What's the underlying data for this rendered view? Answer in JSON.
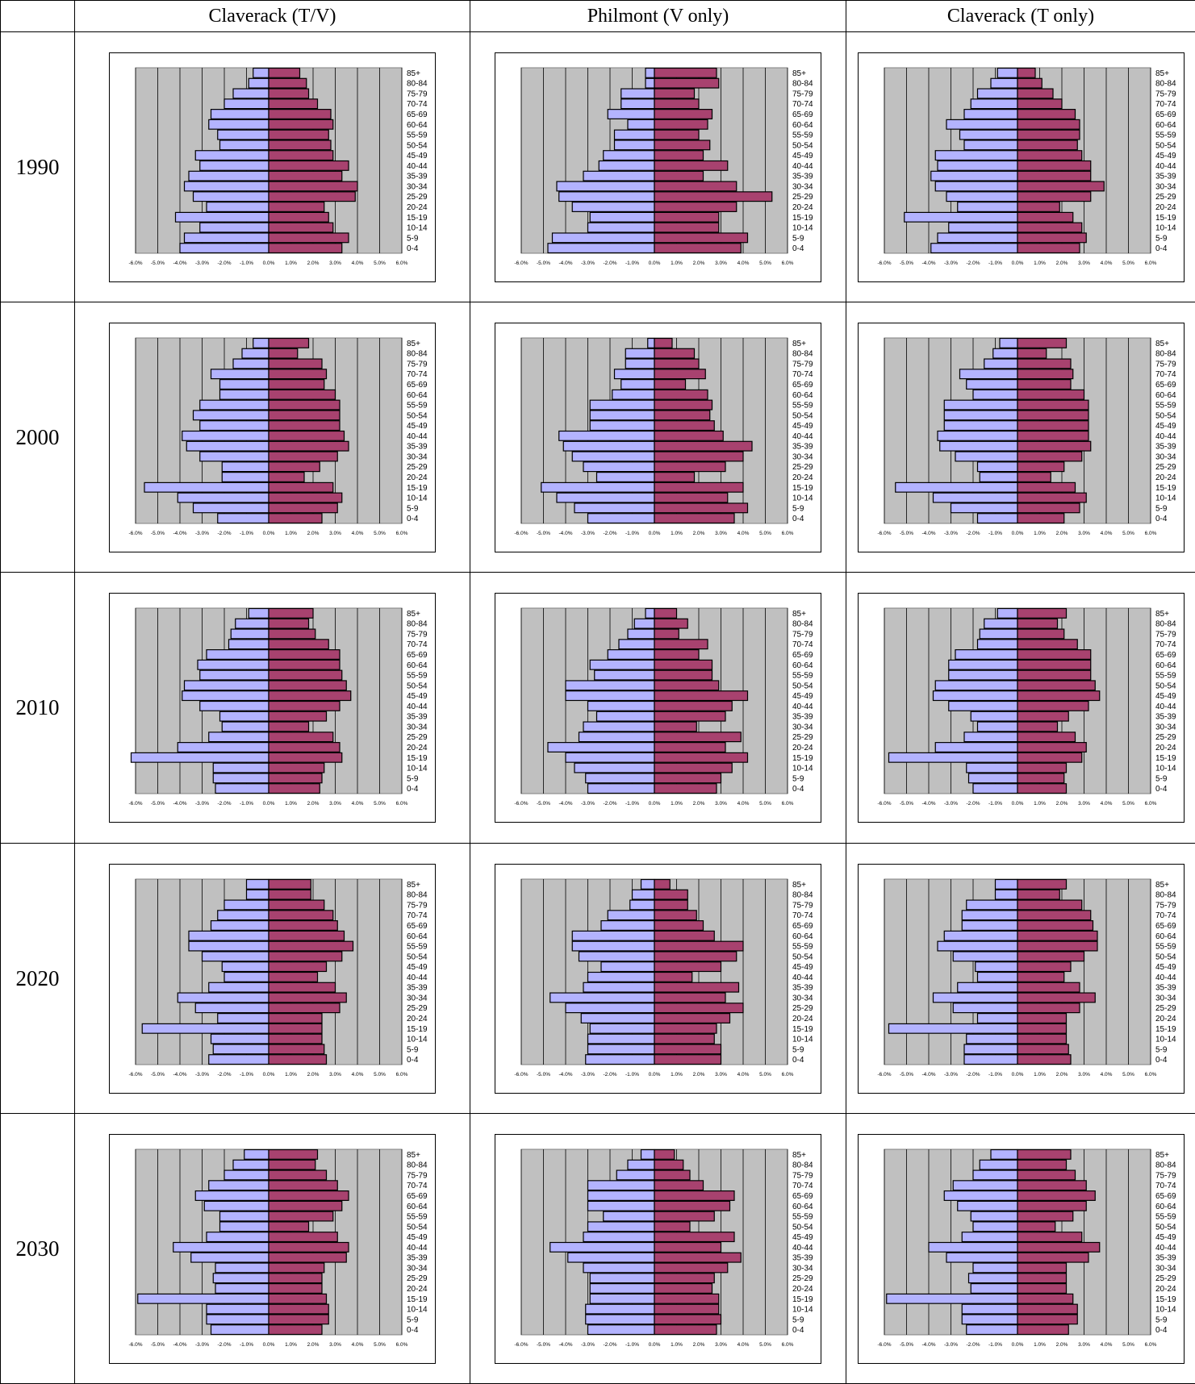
{
  "table": {
    "columns": [
      "",
      "Claverack (T/V)",
      "Philmont (V only)",
      "Claverack (T only)"
    ],
    "years": [
      "1990",
      "2000",
      "2010",
      "2020",
      "2030"
    ]
  },
  "colors": {
    "male": "#b3b3ff",
    "female": "#a8426f",
    "plot_bg": "#c0c0c0",
    "grid": "#000000"
  },
  "age_groups": [
    "85+",
    "80-84",
    "75-79",
    "70-74",
    "65-69",
    "60-64",
    "55-59",
    "50-54",
    "45-49",
    "40-44",
    "35-39",
    "30-34",
    "25-29",
    "20-24",
    "15-19",
    "10-14",
    "5-9",
    "0-4"
  ],
  "x_ticks": [
    "-6.0%",
    "-5.0%",
    "-4.0%",
    "-3.0%",
    "-2.0%",
    "-1.0%",
    "0.0%",
    "1.0%",
    "2.0%",
    "3.0%",
    "4.0%",
    "5.0%",
    "6.0%"
  ],
  "chart_data": [
    {
      "type": "bar",
      "orientation": "horizontal",
      "year": "1990",
      "place": "Claverack (T/V)",
      "xlim": [
        -6,
        6
      ],
      "series": [
        {
          "values": [
            -0.7,
            -0.9,
            -1.6,
            -2.0,
            -2.6,
            -2.7,
            -2.3,
            -2.2,
            -3.3,
            -3.1,
            -3.6,
            -3.8,
            -3.4,
            -2.8,
            -4.2,
            -3.1,
            -3.8,
            -4.0
          ]
        },
        {
          "values": [
            1.4,
            1.7,
            1.8,
            2.2,
            2.8,
            2.9,
            2.7,
            2.8,
            2.9,
            3.6,
            3.3,
            4.0,
            3.9,
            2.5,
            2.7,
            2.9,
            3.6,
            3.3
          ]
        }
      ]
    },
    {
      "type": "bar",
      "orientation": "horizontal",
      "year": "1990",
      "place": "Philmont (V only)",
      "xlim": [
        -6,
        6
      ],
      "series": [
        {
          "values": [
            -0.4,
            -0.4,
            -1.5,
            -1.5,
            -2.1,
            -1.2,
            -1.8,
            -1.8,
            -2.3,
            -2.5,
            -3.2,
            -4.4,
            -4.3,
            -3.7,
            -2.9,
            -3.0,
            -4.6,
            -4.8
          ]
        },
        {
          "values": [
            2.8,
            2.9,
            1.8,
            2.0,
            2.6,
            2.4,
            2.0,
            2.5,
            2.2,
            3.3,
            2.2,
            3.7,
            5.3,
            3.7,
            2.9,
            2.9,
            4.2,
            3.9
          ]
        }
      ]
    },
    {
      "type": "bar",
      "orientation": "horizontal",
      "year": "1990",
      "place": "Claverack (T only)",
      "xlim": [
        -6,
        6
      ],
      "series": [
        {
          "values": [
            -0.9,
            -1.2,
            -1.8,
            -2.1,
            -2.4,
            -3.2,
            -2.6,
            -2.4,
            -3.7,
            -3.6,
            -3.9,
            -3.7,
            -3.2,
            -2.7,
            -5.1,
            -3.1,
            -3.6,
            -3.9
          ]
        },
        {
          "values": [
            0.8,
            1.1,
            1.6,
            2.0,
            2.6,
            2.8,
            2.8,
            2.7,
            2.9,
            3.3,
            3.3,
            3.9,
            3.3,
            1.9,
            2.5,
            2.9,
            3.1,
            2.8
          ]
        }
      ]
    },
    {
      "type": "bar",
      "orientation": "horizontal",
      "year": "2000",
      "place": "Claverack (T/V)",
      "xlim": [
        -6,
        6
      ],
      "series": [
        {
          "values": [
            -0.7,
            -1.2,
            -1.6,
            -2.6,
            -2.2,
            -2.2,
            -3.1,
            -3.4,
            -3.1,
            -3.9,
            -3.7,
            -3.1,
            -2.1,
            -2.1,
            -5.6,
            -4.1,
            -3.4,
            -2.3
          ]
        },
        {
          "values": [
            1.8,
            1.3,
            2.4,
            2.6,
            2.5,
            3.0,
            3.2,
            3.2,
            3.2,
            3.4,
            3.6,
            3.1,
            2.3,
            1.6,
            2.9,
            3.3,
            3.1,
            2.4
          ]
        }
      ]
    },
    {
      "type": "bar",
      "orientation": "horizontal",
      "year": "2000",
      "place": "Philmont (V only)",
      "xlim": [
        -6,
        6
      ],
      "series": [
        {
          "values": [
            -0.3,
            -1.3,
            -1.3,
            -1.8,
            -1.5,
            -1.9,
            -2.9,
            -2.9,
            -2.9,
            -4.3,
            -4.1,
            -3.7,
            -3.2,
            -2.6,
            -5.1,
            -4.4,
            -3.6,
            -3.0
          ]
        },
        {
          "values": [
            0.8,
            1.8,
            2.0,
            2.3,
            1.4,
            2.4,
            2.6,
            2.5,
            2.7,
            3.1,
            4.4,
            4.0,
            3.2,
            1.8,
            4.0,
            3.3,
            4.2,
            3.6
          ]
        }
      ]
    },
    {
      "type": "bar",
      "orientation": "horizontal",
      "year": "2000",
      "place": "Claverack (T only)",
      "xlim": [
        -6,
        6
      ],
      "series": [
        {
          "values": [
            -0.8,
            -1.1,
            -1.5,
            -2.6,
            -2.3,
            -2.0,
            -3.3,
            -3.3,
            -3.3,
            -3.6,
            -3.5,
            -2.8,
            -1.8,
            -1.7,
            -5.5,
            -3.8,
            -3.0,
            -1.8
          ]
        },
        {
          "values": [
            2.2,
            1.3,
            2.4,
            2.5,
            2.4,
            3.0,
            3.2,
            3.2,
            3.2,
            3.2,
            3.3,
            2.9,
            2.1,
            1.5,
            2.6,
            3.1,
            2.8,
            2.1
          ]
        }
      ]
    },
    {
      "type": "bar",
      "orientation": "horizontal",
      "year": "2010",
      "place": "Claverack (T/V)",
      "xlim": [
        -6,
        6
      ],
      "series": [
        {
          "values": [
            -0.9,
            -1.5,
            -1.7,
            -1.8,
            -2.8,
            -3.2,
            -3.1,
            -3.8,
            -3.9,
            -3.1,
            -2.2,
            -2.1,
            -2.7,
            -4.1,
            -6.2,
            -2.5,
            -2.5,
            -2.4
          ]
        },
        {
          "values": [
            2.0,
            1.8,
            2.1,
            2.7,
            3.2,
            3.2,
            3.3,
            3.5,
            3.7,
            3.2,
            2.6,
            1.8,
            2.9,
            3.2,
            3.3,
            2.5,
            2.4,
            2.3
          ]
        }
      ]
    },
    {
      "type": "bar",
      "orientation": "horizontal",
      "year": "2010",
      "place": "Philmont (V only)",
      "xlim": [
        -6,
        6
      ],
      "series": [
        {
          "values": [
            -0.4,
            -0.9,
            -1.2,
            -1.6,
            -2.1,
            -2.9,
            -2.7,
            -4.0,
            -4.0,
            -3.0,
            -2.6,
            -3.2,
            -3.4,
            -4.8,
            -4.0,
            -3.6,
            -3.1,
            -3.0
          ]
        },
        {
          "values": [
            1.0,
            1.5,
            1.1,
            2.4,
            2.0,
            2.6,
            2.6,
            2.9,
            4.2,
            3.5,
            3.2,
            1.9,
            3.9,
            3.2,
            4.2,
            3.5,
            3.0,
            2.8
          ]
        }
      ]
    },
    {
      "type": "bar",
      "orientation": "horizontal",
      "year": "2010",
      "place": "Claverack (T only)",
      "xlim": [
        -6,
        6
      ],
      "series": [
        {
          "values": [
            -0.9,
            -1.5,
            -1.7,
            -1.8,
            -2.8,
            -3.1,
            -3.1,
            -3.7,
            -3.8,
            -3.1,
            -2.1,
            -1.8,
            -2.4,
            -3.7,
            -5.8,
            -2.3,
            -2.2,
            -2.0
          ]
        },
        {
          "values": [
            2.2,
            1.8,
            2.1,
            2.7,
            3.3,
            3.3,
            3.3,
            3.5,
            3.7,
            3.2,
            2.3,
            1.8,
            2.6,
            3.1,
            2.9,
            2.2,
            2.1,
            2.2
          ]
        }
      ]
    },
    {
      "type": "bar",
      "orientation": "horizontal",
      "year": "2020",
      "place": "Claverack (T/V)",
      "xlim": [
        -6,
        6
      ],
      "series": [
        {
          "values": [
            -1.0,
            -1.0,
            -2.0,
            -2.3,
            -2.6,
            -3.6,
            -3.6,
            -3.0,
            -2.1,
            -2.0,
            -2.7,
            -4.1,
            -3.3,
            -2.3,
            -5.7,
            -2.6,
            -2.5,
            -2.7
          ]
        },
        {
          "values": [
            1.9,
            1.9,
            2.5,
            2.9,
            3.1,
            3.4,
            3.8,
            3.3,
            2.6,
            2.2,
            3.0,
            3.5,
            3.2,
            2.4,
            2.4,
            2.4,
            2.5,
            2.6
          ]
        }
      ]
    },
    {
      "type": "bar",
      "orientation": "horizontal",
      "year": "2020",
      "place": "Philmont (V only)",
      "xlim": [
        -6,
        6
      ],
      "series": [
        {
          "values": [
            -0.6,
            -1.0,
            -1.1,
            -2.1,
            -2.4,
            -3.7,
            -3.7,
            -3.4,
            -2.4,
            -3.0,
            -3.2,
            -4.7,
            -4.0,
            -3.3,
            -2.9,
            -3.0,
            -3.0,
            -3.1
          ]
        },
        {
          "values": [
            0.7,
            1.5,
            1.5,
            1.9,
            2.2,
            2.7,
            4.0,
            3.7,
            3.0,
            1.7,
            3.8,
            3.2,
            4.0,
            3.4,
            2.8,
            2.7,
            3.0,
            3.0
          ]
        }
      ]
    },
    {
      "type": "bar",
      "orientation": "horizontal",
      "year": "2020",
      "place": "Claverack (T only)",
      "xlim": [
        -6,
        6
      ],
      "series": [
        {
          "values": [
            -1.0,
            -1.0,
            -2.3,
            -2.5,
            -2.5,
            -3.3,
            -3.6,
            -2.9,
            -1.9,
            -1.8,
            -2.7,
            -3.8,
            -2.9,
            -1.8,
            -5.8,
            -2.3,
            -2.4,
            -2.4
          ]
        },
        {
          "values": [
            2.2,
            1.9,
            2.9,
            3.3,
            3.4,
            3.6,
            3.6,
            3.0,
            2.4,
            2.1,
            2.8,
            3.5,
            2.8,
            2.2,
            2.2,
            2.2,
            2.3,
            2.4
          ]
        }
      ]
    },
    {
      "type": "bar",
      "orientation": "horizontal",
      "year": "2030",
      "place": "Claverack (T/V)",
      "xlim": [
        -6,
        6
      ],
      "series": [
        {
          "values": [
            -1.1,
            -1.6,
            -2.0,
            -2.7,
            -3.3,
            -2.9,
            -2.2,
            -2.2,
            -2.8,
            -4.3,
            -3.5,
            -2.4,
            -2.5,
            -2.4,
            -5.9,
            -2.8,
            -2.8,
            -2.6
          ]
        },
        {
          "values": [
            2.2,
            2.1,
            2.6,
            3.1,
            3.6,
            3.3,
            2.9,
            1.8,
            3.1,
            3.6,
            3.5,
            2.5,
            2.4,
            2.4,
            2.6,
            2.7,
            2.7,
            2.4
          ]
        }
      ]
    },
    {
      "type": "bar",
      "orientation": "horizontal",
      "year": "2030",
      "place": "Philmont (V only)",
      "xlim": [
        -6,
        6
      ],
      "series": [
        {
          "values": [
            -0.6,
            -1.2,
            -1.7,
            -3.0,
            -3.0,
            -3.0,
            -2.3,
            -3.0,
            -3.2,
            -4.7,
            -3.9,
            -3.2,
            -2.9,
            -2.9,
            -2.9,
            -3.1,
            -3.1,
            -3.0
          ]
        },
        {
          "values": [
            0.9,
            1.3,
            1.6,
            2.2,
            3.6,
            3.4,
            2.7,
            1.6,
            3.6,
            3.0,
            3.9,
            3.3,
            2.7,
            2.6,
            2.9,
            2.9,
            3.0,
            2.8
          ]
        }
      ]
    },
    {
      "type": "bar",
      "orientation": "horizontal",
      "year": "2030",
      "place": "Claverack (T only)",
      "xlim": [
        -6,
        6
      ],
      "series": [
        {
          "values": [
            -1.2,
            -1.7,
            -2.0,
            -2.9,
            -3.3,
            -2.7,
            -2.1,
            -2.0,
            -2.5,
            -4.0,
            -3.2,
            -2.0,
            -2.2,
            -2.1,
            -5.9,
            -2.5,
            -2.5,
            -2.3
          ]
        },
        {
          "values": [
            2.4,
            2.2,
            2.6,
            3.1,
            3.5,
            3.1,
            2.5,
            1.7,
            2.9,
            3.7,
            3.2,
            2.2,
            2.2,
            2.2,
            2.5,
            2.7,
            2.7,
            2.3
          ]
        }
      ]
    }
  ]
}
